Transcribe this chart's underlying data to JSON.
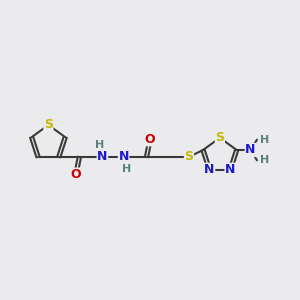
{
  "background_color": "#ebebed",
  "atom_colors": {
    "S": "#c8b800",
    "O": "#cc0000",
    "N": "#1a1acc",
    "C": "#3a3a3a",
    "H": "#5a8080"
  },
  "bond_color": "#3a3a3a",
  "bond_width": 1.5,
  "font_size_atom": 9,
  "font_size_H": 8,
  "figsize": [
    3.0,
    3.0
  ],
  "dpi": 100
}
